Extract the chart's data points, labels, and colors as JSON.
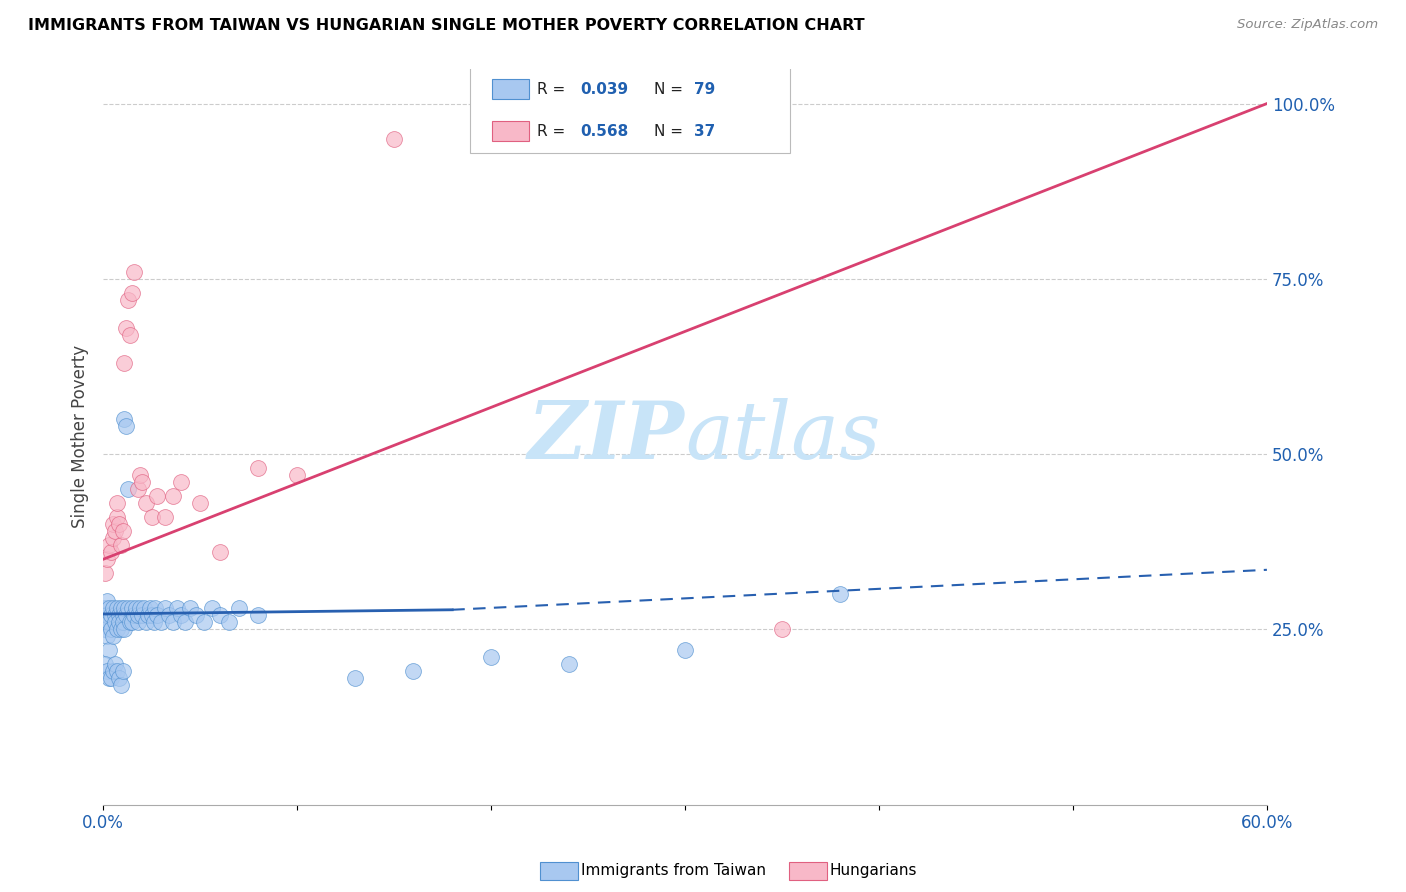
{
  "title": "IMMIGRANTS FROM TAIWAN VS HUNGARIAN SINGLE MOTHER POVERTY CORRELATION CHART",
  "source": "Source: ZipAtlas.com",
  "ylabel": "Single Mother Poverty",
  "xlim": [
    0.0,
    0.6
  ],
  "ylim": [
    0.0,
    1.05
  ],
  "xtick_positions": [
    0.0,
    0.1,
    0.2,
    0.3,
    0.4,
    0.5,
    0.6
  ],
  "xticklabels": [
    "0.0%",
    "",
    "",
    "",
    "",
    "",
    "60.0%"
  ],
  "ytick_positions": [
    0.0,
    0.25,
    0.5,
    0.75,
    1.0
  ],
  "ytick_labels": [
    "",
    "25.0%",
    "50.0%",
    "75.0%",
    "100.0%"
  ],
  "series1_color": "#a8c8f0",
  "series1_edge": "#5090d0",
  "series2_color": "#f8b8c8",
  "series2_edge": "#e06080",
  "trendline1_color": "#2860b0",
  "trendline2_color": "#d84070",
  "watermark_color": "#c8e4f8",
  "grid_color": "#cccccc",
  "taiwan_x": [
    0.001,
    0.001,
    0.001,
    0.001,
    0.002,
    0.002,
    0.002,
    0.003,
    0.003,
    0.003,
    0.004,
    0.004,
    0.005,
    0.005,
    0.006,
    0.006,
    0.007,
    0.007,
    0.008,
    0.008,
    0.009,
    0.009,
    0.01,
    0.01,
    0.011,
    0.011,
    0.012,
    0.013,
    0.014,
    0.015,
    0.015,
    0.016,
    0.017,
    0.018,
    0.018,
    0.019,
    0.02,
    0.021,
    0.022,
    0.023,
    0.024,
    0.025,
    0.026,
    0.027,
    0.028,
    0.03,
    0.032,
    0.034,
    0.036,
    0.038,
    0.04,
    0.042,
    0.045,
    0.048,
    0.052,
    0.056,
    0.06,
    0.065,
    0.07,
    0.08,
    0.001,
    0.002,
    0.003,
    0.004,
    0.005,
    0.006,
    0.007,
    0.008,
    0.009,
    0.01,
    0.011,
    0.012,
    0.013,
    0.13,
    0.16,
    0.2,
    0.24,
    0.3,
    0.38
  ],
  "taiwan_y": [
    0.28,
    0.27,
    0.26,
    0.25,
    0.29,
    0.27,
    0.24,
    0.28,
    0.26,
    0.22,
    0.27,
    0.25,
    0.28,
    0.24,
    0.27,
    0.26,
    0.28,
    0.25,
    0.27,
    0.26,
    0.28,
    0.25,
    0.27,
    0.26,
    0.28,
    0.25,
    0.27,
    0.28,
    0.26,
    0.28,
    0.26,
    0.27,
    0.28,
    0.26,
    0.27,
    0.28,
    0.27,
    0.28,
    0.26,
    0.27,
    0.28,
    0.27,
    0.26,
    0.28,
    0.27,
    0.26,
    0.28,
    0.27,
    0.26,
    0.28,
    0.27,
    0.26,
    0.28,
    0.27,
    0.26,
    0.28,
    0.27,
    0.26,
    0.28,
    0.27,
    0.2,
    0.19,
    0.18,
    0.18,
    0.19,
    0.2,
    0.19,
    0.18,
    0.17,
    0.19,
    0.55,
    0.54,
    0.45,
    0.18,
    0.19,
    0.21,
    0.2,
    0.22,
    0.3
  ],
  "hungarian_x": [
    0.001,
    0.002,
    0.003,
    0.004,
    0.005,
    0.005,
    0.006,
    0.007,
    0.007,
    0.008,
    0.009,
    0.01,
    0.011,
    0.012,
    0.013,
    0.014,
    0.015,
    0.016,
    0.018,
    0.019,
    0.02,
    0.022,
    0.025,
    0.028,
    0.032,
    0.036,
    0.04,
    0.05,
    0.06,
    0.08,
    0.1,
    0.15,
    0.2,
    0.25,
    0.3,
    0.35,
    0.35
  ],
  "hungarian_y": [
    0.33,
    0.35,
    0.37,
    0.36,
    0.38,
    0.4,
    0.39,
    0.41,
    0.43,
    0.4,
    0.37,
    0.39,
    0.63,
    0.68,
    0.72,
    0.67,
    0.73,
    0.76,
    0.45,
    0.47,
    0.46,
    0.43,
    0.41,
    0.44,
    0.41,
    0.44,
    0.46,
    0.43,
    0.36,
    0.48,
    0.47,
    0.95,
    0.95,
    0.95,
    1.0,
    1.0,
    0.25
  ],
  "trendline1_x0": 0.0,
  "trendline1_x1": 0.18,
  "trendline1_y0": 0.272,
  "trendline1_y1": 0.278,
  "trendline1_dash_x0": 0.18,
  "trendline1_dash_x1": 0.6,
  "trendline1_dash_y0": 0.278,
  "trendline1_dash_y1": 0.335,
  "trendline2_x0": 0.0,
  "trendline2_x1": 0.6,
  "trendline2_y0": 0.35,
  "trendline2_y1": 1.0
}
